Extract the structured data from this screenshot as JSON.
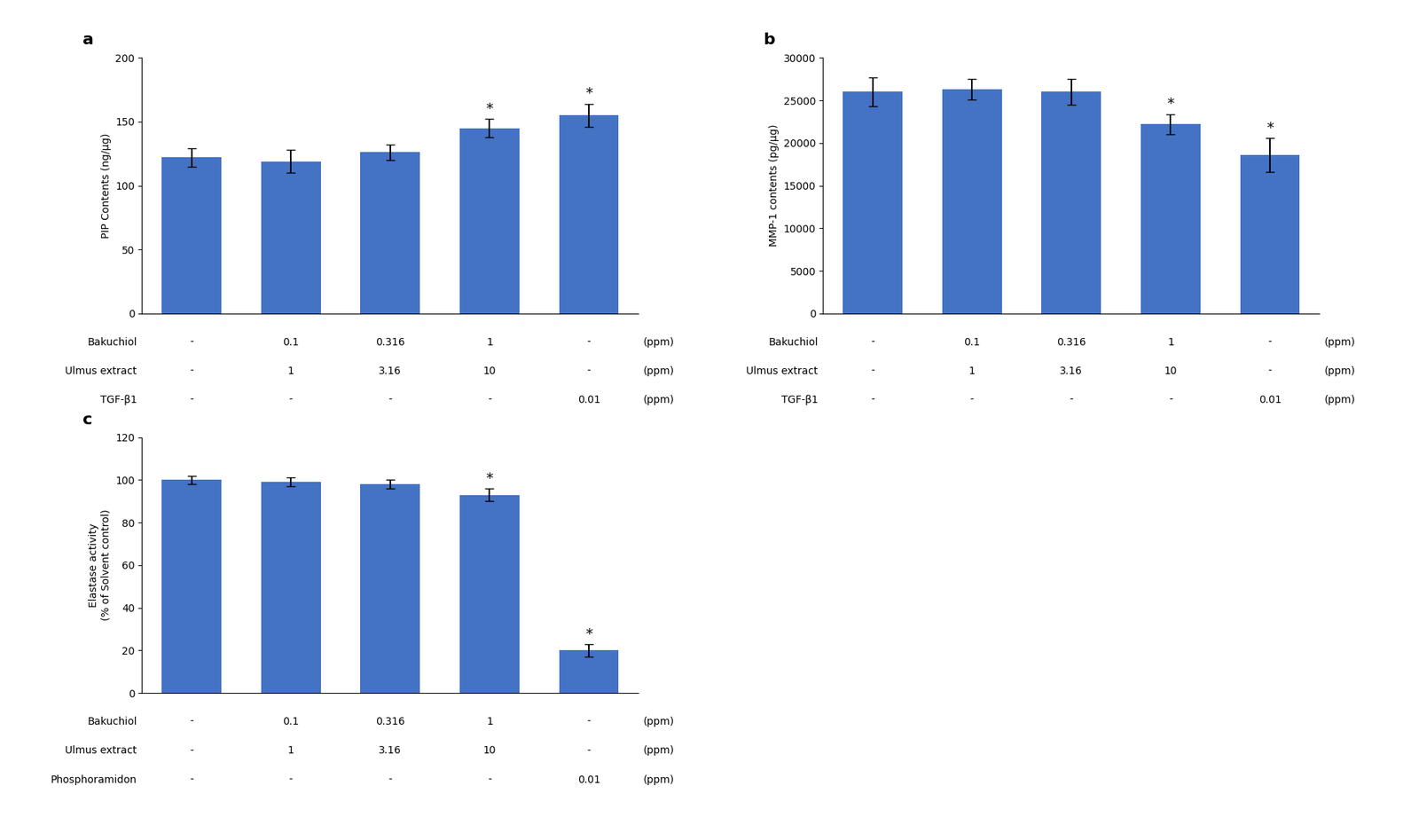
{
  "chart_data": [
    {
      "type": "bar",
      "title": "a",
      "categories": [
        null,
        null,
        null,
        null,
        null
      ],
      "values": [
        122,
        119,
        126,
        145,
        155
      ],
      "errors": [
        7,
        9,
        6,
        7,
        9
      ],
      "color": "#4472C4",
      "ylabel": "PIP Contents (ng/μg)",
      "ylim": [
        0,
        200
      ],
      "yticks": [
        0,
        50,
        100,
        150,
        200
      ],
      "grid": false,
      "annotations": [
        {
          "category": 3,
          "text": "*"
        },
        {
          "category": 4,
          "text": "*"
        }
      ],
      "table": {
        "unit": "(ppm)",
        "rows": [
          {
            "label": "Bakuchiol",
            "values": [
              "-",
              "0.1",
              "0.316",
              "1",
              "-"
            ]
          },
          {
            "label": "Ulmus extract",
            "values": [
              "-",
              "1",
              "3.16",
              "10",
              "-"
            ]
          },
          {
            "label": "TGF-β1",
            "values": [
              "-",
              "-",
              "-",
              "-",
              "0.01"
            ]
          }
        ]
      }
    },
    {
      "type": "bar",
      "title": "b",
      "categories": [
        null,
        null,
        null,
        null,
        null
      ],
      "values": [
        26000,
        26300,
        26000,
        22200,
        18600
      ],
      "errors": [
        1700,
        1200,
        1500,
        1200,
        2000
      ],
      "color": "#4472C4",
      "ylabel": "MMP-1 contents (pg/μg)",
      "ylim": [
        0,
        30000
      ],
      "yticks": [
        0,
        5000,
        10000,
        15000,
        20000,
        25000,
        30000
      ],
      "grid": false,
      "annotations": [
        {
          "category": 3,
          "text": "*"
        },
        {
          "category": 4,
          "text": "*"
        }
      ],
      "table": {
        "unit": "(ppm)",
        "rows": [
          {
            "label": "Bakuchiol",
            "values": [
              "-",
              "0.1",
              "0.316",
              "1",
              "-"
            ]
          },
          {
            "label": "Ulmus extract",
            "values": [
              "-",
              "1",
              "3.16",
              "10",
              "-"
            ]
          },
          {
            "label": "TGF-β1",
            "values": [
              "-",
              "-",
              "-",
              "-",
              "0.01"
            ]
          }
        ]
      }
    },
    {
      "type": "bar",
      "title": "c",
      "categories": [
        null,
        null,
        null,
        null,
        null
      ],
      "values": [
        100,
        99,
        98,
        93,
        20
      ],
      "errors": [
        2,
        2,
        2,
        3,
        3
      ],
      "color": "#4472C4",
      "ylabel": "Elastase activity\n(% of Solvent control)",
      "ylim": [
        0,
        120
      ],
      "yticks": [
        0,
        20,
        40,
        60,
        80,
        100,
        120
      ],
      "grid": false,
      "annotations": [
        {
          "category": 3,
          "text": "*"
        },
        {
          "category": 4,
          "text": "*"
        }
      ],
      "table": {
        "unit": "(ppm)",
        "rows": [
          {
            "label": "Bakuchiol",
            "values": [
              "-",
              "0.1",
              "0.316",
              "1",
              "-"
            ]
          },
          {
            "label": "Ulmus extract",
            "values": [
              "-",
              "1",
              "3.16",
              "10",
              "-"
            ]
          },
          {
            "label": "Phosphoramidon",
            "values": [
              "-",
              "-",
              "-",
              "-",
              "0.01"
            ]
          }
        ]
      }
    }
  ]
}
